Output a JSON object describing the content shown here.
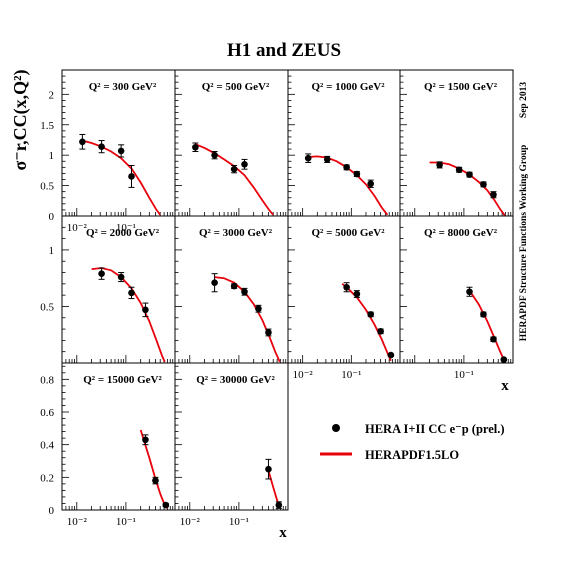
{
  "figure": {
    "title": "H1 and ZEUS",
    "y_axis_label": "σ⁻r,CC(x,Q²)",
    "x_axis_label": "x",
    "side_text": "HERAPDF Structure Functions Working Group",
    "date_text": "Sep 2013",
    "legend": [
      {
        "label": "HERA I+II CC e⁻p (prel.)",
        "marker": "data-point"
      },
      {
        "label": "HERAPDF1.5LO",
        "marker": "red-line"
      }
    ],
    "colors": {
      "data": "#000000",
      "fit": "#e8000b"
    }
  },
  "chart_data": [
    {
      "type": "scatter",
      "label": "Q² = 300 GeV²",
      "x_scale": "log",
      "xlim": [
        0.005,
        1
      ],
      "ylim": [
        0,
        2.4
      ],
      "x_ticks": [
        "10⁻²",
        "10⁻¹"
      ],
      "y_ticks": [
        0,
        0.5,
        1,
        1.5,
        2
      ],
      "points": [
        {
          "x": 0.013,
          "y": 1.22,
          "err": 0.12
        },
        {
          "x": 0.032,
          "y": 1.14,
          "err": 0.1
        },
        {
          "x": 0.08,
          "y": 1.07,
          "err": 0.1
        },
        {
          "x": 0.13,
          "y": 0.65,
          "err": 0.18
        }
      ],
      "curve": [
        [
          0.013,
          1.24
        ],
        [
          0.02,
          1.2
        ],
        [
          0.032,
          1.14
        ],
        [
          0.05,
          1.06
        ],
        [
          0.08,
          0.95
        ],
        [
          0.13,
          0.78
        ],
        [
          0.2,
          0.55
        ],
        [
          0.3,
          0.3
        ],
        [
          0.42,
          0.1
        ],
        [
          0.5,
          0.02
        ]
      ]
    },
    {
      "type": "scatter",
      "label": "Q² = 500 GeV²",
      "x_scale": "log",
      "xlim": [
        0.005,
        1
      ],
      "ylim": [
        0,
        2.4
      ],
      "x_ticks": [],
      "y_ticks": [],
      "points": [
        {
          "x": 0.013,
          "y": 1.13,
          "err": 0.07
        },
        {
          "x": 0.032,
          "y": 1.0,
          "err": 0.06
        },
        {
          "x": 0.08,
          "y": 0.77,
          "err": 0.06
        },
        {
          "x": 0.13,
          "y": 0.85,
          "err": 0.08
        }
      ],
      "curve": [
        [
          0.013,
          1.18
        ],
        [
          0.02,
          1.12
        ],
        [
          0.032,
          1.03
        ],
        [
          0.05,
          0.93
        ],
        [
          0.08,
          0.82
        ],
        [
          0.13,
          0.67
        ],
        [
          0.2,
          0.47
        ],
        [
          0.3,
          0.26
        ],
        [
          0.42,
          0.09
        ],
        [
          0.5,
          0.02
        ]
      ]
    },
    {
      "type": "scatter",
      "label": "Q² = 1000 GeV²",
      "x_scale": "log",
      "xlim": [
        0.005,
        1
      ],
      "ylim": [
        0,
        2.4
      ],
      "x_ticks": [],
      "y_ticks": [],
      "points": [
        {
          "x": 0.013,
          "y": 0.95,
          "err": 0.07
        },
        {
          "x": 0.032,
          "y": 0.93,
          "err": 0.05
        },
        {
          "x": 0.08,
          "y": 0.8,
          "err": 0.04
        },
        {
          "x": 0.13,
          "y": 0.69,
          "err": 0.04
        },
        {
          "x": 0.25,
          "y": 0.53,
          "err": 0.06
        }
      ],
      "curve": [
        [
          0.013,
          0.97
        ],
        [
          0.02,
          0.98
        ],
        [
          0.032,
          0.96
        ],
        [
          0.05,
          0.9
        ],
        [
          0.08,
          0.8
        ],
        [
          0.13,
          0.67
        ],
        [
          0.2,
          0.52
        ],
        [
          0.3,
          0.33
        ],
        [
          0.42,
          0.14
        ],
        [
          0.55,
          0.02
        ]
      ]
    },
    {
      "type": "scatter",
      "label": "Q² = 1500 GeV²",
      "x_scale": "log",
      "xlim": [
        0.005,
        1
      ],
      "ylim": [
        0,
        2.4
      ],
      "x_ticks": [],
      "y_ticks": [],
      "points": [
        {
          "x": 0.032,
          "y": 0.84,
          "err": 0.05
        },
        {
          "x": 0.08,
          "y": 0.76,
          "err": 0.04
        },
        {
          "x": 0.13,
          "y": 0.68,
          "err": 0.04
        },
        {
          "x": 0.25,
          "y": 0.52,
          "err": 0.04
        },
        {
          "x": 0.4,
          "y": 0.35,
          "err": 0.05
        }
      ],
      "curve": [
        [
          0.02,
          0.88
        ],
        [
          0.032,
          0.88
        ],
        [
          0.05,
          0.85
        ],
        [
          0.08,
          0.78
        ],
        [
          0.13,
          0.68
        ],
        [
          0.2,
          0.56
        ],
        [
          0.3,
          0.42
        ],
        [
          0.42,
          0.26
        ],
        [
          0.55,
          0.11
        ],
        [
          0.68,
          0.01
        ]
      ]
    },
    {
      "type": "scatter",
      "label": "Q² = 2000 GeV²",
      "x_scale": "log",
      "xlim": [
        0.005,
        1
      ],
      "ylim": [
        0,
        1.3
      ],
      "x_ticks": [],
      "y_ticks": [
        0.5,
        1
      ],
      "points": [
        {
          "x": 0.032,
          "y": 0.79,
          "err": 0.05
        },
        {
          "x": 0.08,
          "y": 0.76,
          "err": 0.04
        },
        {
          "x": 0.13,
          "y": 0.62,
          "err": 0.05
        },
        {
          "x": 0.25,
          "y": 0.47,
          "err": 0.06
        }
      ],
      "curve": [
        [
          0.02,
          0.83
        ],
        [
          0.032,
          0.84
        ],
        [
          0.05,
          0.82
        ],
        [
          0.08,
          0.76
        ],
        [
          0.13,
          0.66
        ],
        [
          0.2,
          0.53
        ],
        [
          0.3,
          0.37
        ],
        [
          0.42,
          0.2
        ],
        [
          0.55,
          0.06
        ],
        [
          0.62,
          0.01
        ]
      ]
    },
    {
      "type": "scatter",
      "label": "Q² = 3000 GeV²",
      "x_scale": "log",
      "xlim": [
        0.005,
        1
      ],
      "ylim": [
        0,
        1.3
      ],
      "x_ticks": [],
      "y_ticks": [],
      "points": [
        {
          "x": 0.032,
          "y": 0.71,
          "err": 0.08
        },
        {
          "x": 0.08,
          "y": 0.68,
          "err": 0.02
        },
        {
          "x": 0.13,
          "y": 0.63,
          "err": 0.03
        },
        {
          "x": 0.25,
          "y": 0.48,
          "err": 0.03
        },
        {
          "x": 0.4,
          "y": 0.27,
          "err": 0.03
        }
      ],
      "curve": [
        [
          0.032,
          0.76
        ],
        [
          0.05,
          0.75
        ],
        [
          0.08,
          0.71
        ],
        [
          0.13,
          0.63
        ],
        [
          0.2,
          0.52
        ],
        [
          0.3,
          0.38
        ],
        [
          0.42,
          0.23
        ],
        [
          0.55,
          0.1
        ],
        [
          0.68,
          0.01
        ]
      ]
    },
    {
      "type": "scatter",
      "label": "Q² = 5000 GeV²",
      "x_scale": "log",
      "xlim": [
        0.005,
        1
      ],
      "ylim": [
        0,
        1.3
      ],
      "x_ticks": [
        "10⁻²",
        "10⁻¹"
      ],
      "y_ticks": [],
      "points": [
        {
          "x": 0.08,
          "y": 0.67,
          "err": 0.04
        },
        {
          "x": 0.13,
          "y": 0.61,
          "err": 0.03
        },
        {
          "x": 0.25,
          "y": 0.43,
          "err": 0.02
        },
        {
          "x": 0.4,
          "y": 0.28,
          "err": 0.02
        },
        {
          "x": 0.65,
          "y": 0.07,
          "err": 0.01
        }
      ],
      "curve": [
        [
          0.065,
          0.7
        ],
        [
          0.08,
          0.67
        ],
        [
          0.13,
          0.58
        ],
        [
          0.2,
          0.47
        ],
        [
          0.3,
          0.34
        ],
        [
          0.42,
          0.21
        ],
        [
          0.55,
          0.09
        ],
        [
          0.65,
          0.02
        ]
      ]
    },
    {
      "type": "scatter",
      "label": "Q² = 8000 GeV²",
      "x_scale": "log",
      "xlim": [
        0.005,
        1
      ],
      "ylim": [
        0,
        1.3
      ],
      "x_ticks": [
        "10⁻¹"
      ],
      "y_ticks": [],
      "points": [
        {
          "x": 0.13,
          "y": 0.63,
          "err": 0.04
        },
        {
          "x": 0.25,
          "y": 0.43,
          "err": 0.02
        },
        {
          "x": 0.4,
          "y": 0.21,
          "err": 0.02
        },
        {
          "x": 0.65,
          "y": 0.03,
          "err": 0.005
        }
      ],
      "curve": [
        [
          0.13,
          0.64
        ],
        [
          0.2,
          0.52
        ],
        [
          0.3,
          0.37
        ],
        [
          0.42,
          0.22
        ],
        [
          0.55,
          0.1
        ],
        [
          0.68,
          0.01
        ]
      ]
    },
    {
      "type": "scatter",
      "label": "Q² = 15000 GeV²",
      "x_scale": "log",
      "xlim": [
        0.005,
        1
      ],
      "ylim": [
        0,
        0.9
      ],
      "x_ticks": [
        "10⁻²",
        "10⁻¹"
      ],
      "y_ticks": [
        0,
        0.2,
        0.4,
        0.6,
        0.8
      ],
      "points": [
        {
          "x": 0.25,
          "y": 0.43,
          "err": 0.03
        },
        {
          "x": 0.4,
          "y": 0.18,
          "err": 0.02
        },
        {
          "x": 0.65,
          "y": 0.03,
          "err": 0.01
        }
      ],
      "curve": [
        [
          0.2,
          0.49
        ],
        [
          0.3,
          0.32
        ],
        [
          0.4,
          0.19
        ],
        [
          0.5,
          0.1
        ],
        [
          0.6,
          0.04
        ],
        [
          0.7,
          0.01
        ]
      ]
    },
    {
      "type": "scatter",
      "label": "Q² = 30000 GeV²",
      "x_scale": "log",
      "xlim": [
        0.005,
        1
      ],
      "ylim": [
        0,
        0.9
      ],
      "x_ticks": [
        "10⁻²",
        "10⁻¹"
      ],
      "y_ticks": [],
      "points": [
        {
          "x": 0.4,
          "y": 0.25,
          "err": 0.06
        },
        {
          "x": 0.65,
          "y": 0.03,
          "err": 0.02
        }
      ],
      "curve": [
        [
          0.4,
          0.24
        ],
        [
          0.5,
          0.14
        ],
        [
          0.6,
          0.06
        ],
        [
          0.7,
          0.01
        ]
      ]
    }
  ]
}
